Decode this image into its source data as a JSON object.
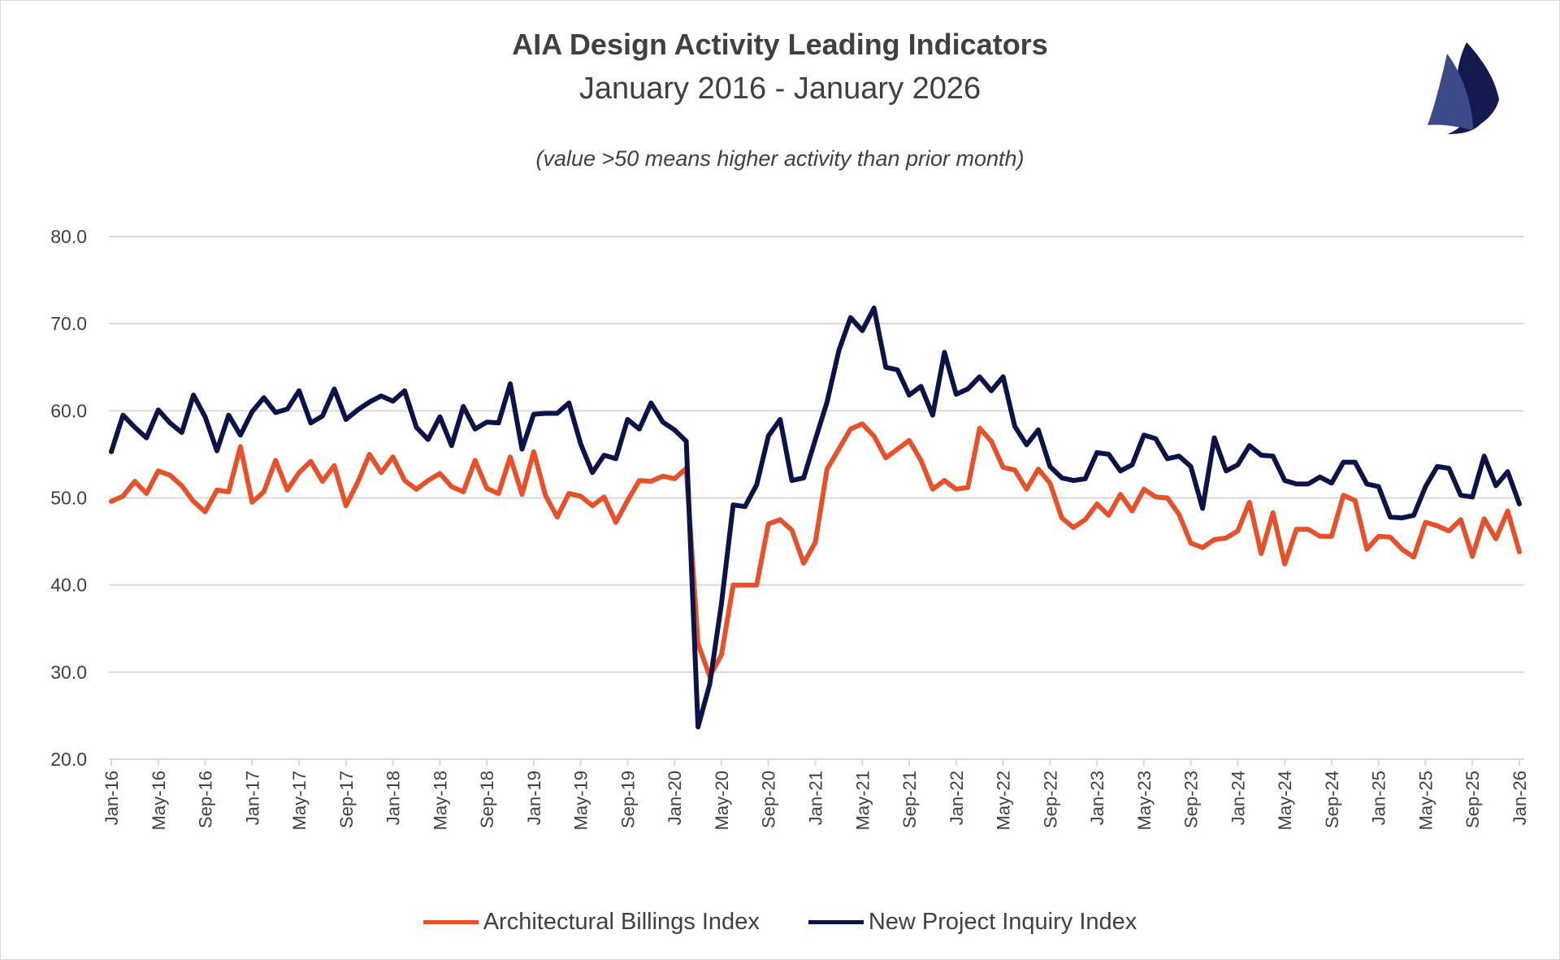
{
  "header": {
    "title": "AIA Design Activity Leading Indicators",
    "subtitle": "January 2016 - January 2026",
    "note": "(value >50 means higher activity than prior month)"
  },
  "colors": {
    "abi": "#E8502A",
    "npii": "#0B1449",
    "logo_light": "#3D4A8A",
    "logo_dark": "#141A4E",
    "grid": "#D9D9D9",
    "text": "#404040"
  },
  "logo": {
    "icon": "sailboat-sails-icon"
  },
  "chart_data": {
    "type": "line",
    "title": "AIA Design Activity Leading Indicators",
    "subtitle": "January 2016 - January 2026",
    "xlabel": "",
    "ylabel": "",
    "ylim": [
      20,
      80
    ],
    "y_ticks": [
      "20.0",
      "30.0",
      "40.0",
      "50.0",
      "60.0",
      "70.0",
      "80.0"
    ],
    "y_tick_values": [
      20,
      30,
      40,
      50,
      60,
      70,
      80
    ],
    "grid": true,
    "legend": "bottom",
    "x_tick_labels": [
      "Jan-16",
      "May-16",
      "Sep-16",
      "Jan-17",
      "May-17",
      "Sep-17",
      "Jan-18",
      "May-18",
      "Sep-18",
      "Jan-19",
      "May-19",
      "Sep-19",
      "Jan-20",
      "May-20",
      "Sep-20",
      "Jan-21",
      "May-21",
      "Sep-21",
      "Jan-22",
      "May-22",
      "Sep-22",
      "Jan-23",
      "May-23",
      "Sep-23",
      "Jan-24",
      "May-24",
      "Sep-24",
      "Jan-25",
      "May-25",
      "Sep-25",
      "Jan-26"
    ],
    "x": [
      "Jan-16",
      "Feb-16",
      "Mar-16",
      "Apr-16",
      "May-16",
      "Jun-16",
      "Jul-16",
      "Aug-16",
      "Sep-16",
      "Oct-16",
      "Nov-16",
      "Dec-16",
      "Jan-17",
      "Feb-17",
      "Mar-17",
      "Apr-17",
      "May-17",
      "Jun-17",
      "Jul-17",
      "Aug-17",
      "Sep-17",
      "Oct-17",
      "Nov-17",
      "Dec-17",
      "Jan-18",
      "Feb-18",
      "Mar-18",
      "Apr-18",
      "May-18",
      "Jun-18",
      "Jul-18",
      "Aug-18",
      "Sep-18",
      "Oct-18",
      "Nov-18",
      "Dec-18",
      "Jan-19",
      "Feb-19",
      "Mar-19",
      "Apr-19",
      "May-19",
      "Jun-19",
      "Jul-19",
      "Aug-19",
      "Sep-19",
      "Oct-19",
      "Nov-19",
      "Dec-19",
      "Jan-20",
      "Feb-20",
      "Mar-20",
      "Apr-20",
      "May-20",
      "Jun-20",
      "Jul-20",
      "Aug-20",
      "Sep-20",
      "Oct-20",
      "Nov-20",
      "Dec-20",
      "Jan-21",
      "Feb-21",
      "Mar-21",
      "Apr-21",
      "May-21",
      "Jun-21",
      "Jul-21",
      "Aug-21",
      "Sep-21",
      "Oct-21",
      "Nov-21",
      "Dec-21",
      "Jan-22",
      "Feb-22",
      "Mar-22",
      "Apr-22",
      "May-22",
      "Jun-22",
      "Jul-22",
      "Aug-22",
      "Sep-22",
      "Oct-22",
      "Nov-22",
      "Dec-22",
      "Jan-23",
      "Feb-23",
      "Mar-23",
      "Apr-23",
      "May-23",
      "Jun-23",
      "Jul-23",
      "Aug-23",
      "Sep-23",
      "Oct-23",
      "Nov-23",
      "Dec-23",
      "Jan-24",
      "Feb-24",
      "Mar-24",
      "Apr-24",
      "May-24",
      "Jun-24",
      "Jul-24",
      "Aug-24",
      "Sep-24",
      "Oct-24",
      "Nov-24",
      "Dec-24",
      "Jan-25",
      "Feb-25",
      "Mar-25",
      "Apr-25",
      "May-25",
      "Jun-25",
      "Jul-25",
      "Aug-25",
      "Sep-25",
      "Oct-25",
      "Nov-25",
      "Dec-25",
      "Jan-26"
    ],
    "series": [
      {
        "name": "Architectural Billings Index",
        "color": "#E8502A",
        "values": [
          49.6,
          50.2,
          51.9,
          50.5,
          53.1,
          52.6,
          51.4,
          49.6,
          48.4,
          50.9,
          50.7,
          55.9,
          49.5,
          50.7,
          54.3,
          50.9,
          52.9,
          54.2,
          51.9,
          53.7,
          49.1,
          51.8,
          55.0,
          52.9,
          54.7,
          52.0,
          51.0,
          52.0,
          52.8,
          51.3,
          50.7,
          54.3,
          51.1,
          50.5,
          54.7,
          50.4,
          55.3,
          50.3,
          47.8,
          50.5,
          50.2,
          49.1,
          50.1,
          47.2,
          49.7,
          52.0,
          51.9,
          52.5,
          52.2,
          53.4,
          33.3,
          29.5,
          32.0,
          40.0,
          40.0,
          40.0,
          47.0,
          47.5,
          46.3,
          42.5,
          44.9,
          53.3,
          55.6,
          57.9,
          58.5,
          57.1,
          54.6,
          55.6,
          56.6,
          54.3,
          51.0,
          52.0,
          51.0,
          51.2,
          58.0,
          56.5,
          53.5,
          53.2,
          51.0,
          53.3,
          51.7,
          47.7,
          46.6,
          47.5,
          49.3,
          48.0,
          50.4,
          48.5,
          51.0,
          50.1,
          50.0,
          48.1,
          44.8,
          44.3,
          45.2,
          45.4,
          46.2,
          49.5,
          43.6,
          48.3,
          42.4,
          46.4,
          46.4,
          45.6,
          45.6,
          50.3,
          49.7,
          44.1,
          45.6,
          45.5,
          44.1,
          43.2,
          47.2,
          46.8,
          46.2,
          47.5,
          43.3,
          47.6,
          45.3,
          48.5,
          43.8
        ]
      },
      {
        "name": "New Project Inquiry Index",
        "color": "#0B1449",
        "values": [
          55.3,
          59.5,
          58.1,
          56.9,
          60.1,
          58.6,
          57.5,
          61.8,
          59.3,
          55.4,
          59.5,
          57.2,
          59.9,
          61.5,
          59.8,
          60.2,
          62.3,
          58.6,
          59.4,
          62.5,
          59.0,
          60.1,
          61.0,
          61.7,
          61.1,
          62.3,
          58.1,
          56.7,
          59.3,
          56.0,
          60.5,
          57.9,
          58.7,
          58.6,
          63.1,
          55.6,
          59.6,
          59.7,
          59.7,
          60.9,
          56.2,
          52.9,
          54.9,
          54.5,
          59.0,
          57.9,
          60.9,
          58.7,
          57.8,
          56.5,
          23.7,
          28.6,
          37.9,
          49.2,
          49.0,
          51.5,
          57.1,
          59.0,
          52.0,
          52.3,
          56.7,
          61.0,
          66.9,
          70.7,
          69.2,
          71.8,
          65.0,
          64.7,
          61.8,
          62.8,
          59.5,
          66.7,
          61.9,
          62.5,
          63.9,
          62.3,
          63.9,
          58.2,
          56.1,
          57.8,
          53.6,
          52.3,
          52.0,
          52.2,
          55.2,
          55.0,
          53.1,
          53.8,
          57.2,
          56.8,
          54.5,
          54.8,
          53.6,
          48.8,
          56.9,
          53.1,
          53.8,
          56.0,
          54.9,
          54.8,
          52.0,
          51.6,
          51.6,
          52.4,
          51.7,
          54.1,
          54.1,
          51.6,
          51.3,
          47.8,
          47.7,
          48.0,
          51.3,
          53.6,
          53.4,
          50.3,
          50.1,
          54.8,
          51.4,
          53.0,
          49.3
        ]
      }
    ]
  }
}
